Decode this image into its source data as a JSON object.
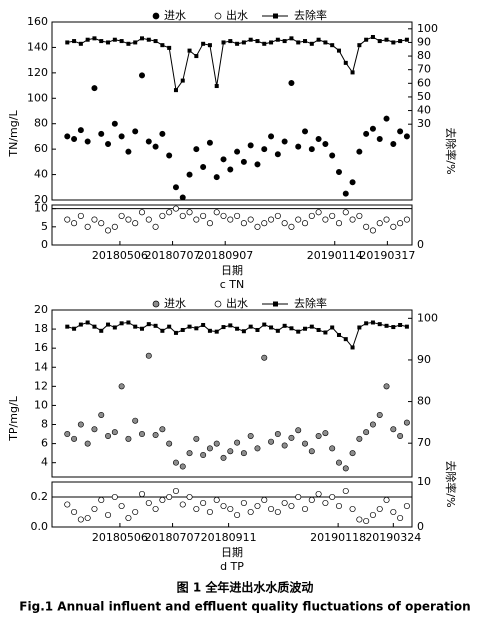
{
  "chart_data": [
    {
      "type": "scatter",
      "label": "c TN",
      "xlabel": "日期",
      "ylabel": "TN/mg/L",
      "y2label": "去除率/%",
      "x": [
        "20180305",
        "20180313",
        "20180321",
        "20180329",
        "20180406",
        "20180414",
        "20180422",
        "20180430",
        "20180508",
        "20180516",
        "20180524",
        "20180601",
        "20180609",
        "20180617",
        "20180625",
        "20180703",
        "20180711",
        "20180719",
        "20180727",
        "20180804",
        "20180812",
        "20180820",
        "20180828",
        "20180905",
        "20180913",
        "20180921",
        "20180929",
        "20181007",
        "20181015",
        "20181023",
        "20181031",
        "20181108",
        "20181116",
        "20181124",
        "20181202",
        "20181210",
        "20181218",
        "20181226",
        "20190103",
        "20190111",
        "20190119",
        "20190127",
        "20190204",
        "20190212",
        "20190220",
        "20190228",
        "20190308",
        "20190316",
        "20190324",
        "20190401",
        "20190409"
      ],
      "xlim": [
        "20180215",
        "20190415"
      ],
      "xticks": [
        "20180506",
        "20180707",
        "20180907",
        "20190114",
        "20190317"
      ],
      "ylim": [
        0,
        160
      ],
      "ybreak": [
        11,
        20
      ],
      "yticks": [
        0,
        5,
        10,
        20,
        40,
        60,
        80,
        100,
        120,
        140,
        160
      ],
      "y2lim": [
        0,
        105
      ],
      "y2break": [
        10,
        25
      ],
      "y2ticks": [
        0,
        30,
        40,
        50,
        60,
        70,
        80,
        90,
        100
      ],
      "hline": 10,
      "series": [
        {
          "name": "进水",
          "color": "#000000",
          "marker": "filled",
          "values": [
            70,
            68,
            75,
            66,
            108,
            72,
            64,
            80,
            70,
            58,
            74,
            118,
            66,
            62,
            72,
            55,
            30,
            22,
            40,
            60,
            46,
            65,
            38,
            52,
            44,
            58,
            50,
            63,
            48,
            60,
            70,
            56,
            66,
            112,
            62,
            74,
            60,
            68,
            64,
            55,
            42,
            25,
            34,
            58,
            72,
            76,
            68,
            84,
            64,
            74,
            70
          ]
        },
        {
          "name": "出水",
          "color": "#000000",
          "marker": "open",
          "values": [
            7,
            6,
            8,
            5,
            7,
            6,
            4,
            5,
            8,
            7,
            6,
            9,
            7,
            5,
            8,
            9,
            10,
            8,
            9,
            7,
            8,
            6,
            9,
            8,
            7,
            8,
            6,
            7,
            5,
            6,
            7,
            8,
            6,
            5,
            7,
            6,
            8,
            9,
            7,
            8,
            6,
            9,
            7,
            8,
            5,
            4,
            6,
            7,
            5,
            6,
            7
          ]
        },
        {
          "name": "去除率",
          "color": "#000000",
          "marker": "line-square",
          "axis": "y2",
          "values": [
            90,
            91,
            89,
            92,
            93,
            91,
            90,
            92,
            91,
            89,
            90,
            93,
            92,
            91,
            88,
            86,
            55,
            62,
            84,
            80,
            89,
            88,
            58,
            90,
            91,
            89,
            90,
            92,
            91,
            89,
            90,
            92,
            91,
            93,
            90,
            91,
            89,
            92,
            90,
            88,
            84,
            75,
            68,
            88,
            92,
            94,
            91,
            92,
            90,
            91,
            92
          ]
        }
      ]
    },
    {
      "type": "scatter",
      "label": "d TP",
      "xlabel": "日期",
      "ylabel": "TP/mg/L",
      "y2label": "去除率/%",
      "x": [
        "20180305",
        "20180313",
        "20180321",
        "20180329",
        "20180406",
        "20180414",
        "20180422",
        "20180430",
        "20180508",
        "20180516",
        "20180524",
        "20180601",
        "20180609",
        "20180617",
        "20180625",
        "20180703",
        "20180711",
        "20180719",
        "20180727",
        "20180804",
        "20180812",
        "20180820",
        "20180828",
        "20180905",
        "20180913",
        "20180921",
        "20180929",
        "20181007",
        "20181015",
        "20181023",
        "20181031",
        "20181108",
        "20181116",
        "20181124",
        "20181202",
        "20181210",
        "20181218",
        "20181226",
        "20190103",
        "20190111",
        "20190119",
        "20190127",
        "20190204",
        "20190212",
        "20190220",
        "20190228",
        "20190308",
        "20190316",
        "20190324",
        "20190401",
        "20190409"
      ],
      "xlim": [
        "20180215",
        "20190415"
      ],
      "xticks": [
        "20180506",
        "20180707",
        "20180911",
        "20190118",
        "20190324"
      ],
      "ylim": [
        0,
        20
      ],
      "ybreak": [
        0.3,
        2.5
      ],
      "yticks": [
        {
          "value": 0,
          "label": "0.0"
        },
        0.2,
        4,
        6,
        8,
        10,
        12,
        14,
        16,
        18,
        20
      ],
      "y2lim": [
        0,
        102
      ],
      "y2break": [
        10,
        65
      ],
      "y2ticks": [
        0,
        10,
        70,
        80,
        90,
        100
      ],
      "hline": 0.2,
      "series": [
        {
          "name": "进水",
          "color": "#8c8c8c",
          "marker": "filled",
          "values": [
            7,
            6.5,
            8,
            6,
            7.5,
            9,
            6.8,
            7.2,
            12,
            6.5,
            8.4,
            7,
            15.2,
            6.9,
            7.5,
            6,
            4,
            3.6,
            5,
            6.5,
            4.8,
            5.5,
            6,
            4.5,
            5.2,
            6.1,
            5,
            6.8,
            5.5,
            15,
            6.2,
            7,
            5.8,
            6.6,
            7.4,
            6,
            5.2,
            6.8,
            7.1,
            5.5,
            4,
            3.4,
            5,
            6.5,
            7.2,
            8,
            9,
            12,
            7.5,
            6.8,
            8.2
          ]
        },
        {
          "name": "出水",
          "color": "#000000",
          "marker": "open",
          "values": [
            0.15,
            0.1,
            0.05,
            0.06,
            0.12,
            0.18,
            0.08,
            0.2,
            0.14,
            0.06,
            0.1,
            0.22,
            0.16,
            0.12,
            0.18,
            0.2,
            0.24,
            0.15,
            0.2,
            0.12,
            0.16,
            0.1,
            0.18,
            0.14,
            0.12,
            0.08,
            0.16,
            0.1,
            0.14,
            0.18,
            0.12,
            0.1,
            0.16,
            0.14,
            0.2,
            0.12,
            0.18,
            0.22,
            0.16,
            0.2,
            0.14,
            0.24,
            0.12,
            0.05,
            0.04,
            0.08,
            0.12,
            0.18,
            0.1,
            0.06,
            0.14
          ]
        },
        {
          "name": "去除率",
          "color": "#000000",
          "marker": "line-square",
          "axis": "y2",
          "values": [
            98,
            97.5,
            98.5,
            99,
            98,
            97,
            98.5,
            97.8,
            98.8,
            99,
            98,
            97.5,
            98.6,
            98.2,
            97,
            98,
            96.5,
            97.2,
            98,
            97.6,
            98.4,
            97,
            96.8,
            97.9,
            98.3,
            97.5,
            96.9,
            98,
            97.2,
            98.5,
            97.8,
            97,
            98.2,
            97.6,
            96.8,
            97.5,
            98,
            97.2,
            96.6,
            97.8,
            96,
            95,
            93,
            97.8,
            98.8,
            99,
            98.6,
            98.2,
            97.9,
            98.4,
            98
          ]
        }
      ]
    }
  ],
  "figure": {
    "caption_zh": "图 1    全年进出水水质波动",
    "caption_en": "Fig.1    Annual influent and effluent quality fluctuations of operation"
  }
}
